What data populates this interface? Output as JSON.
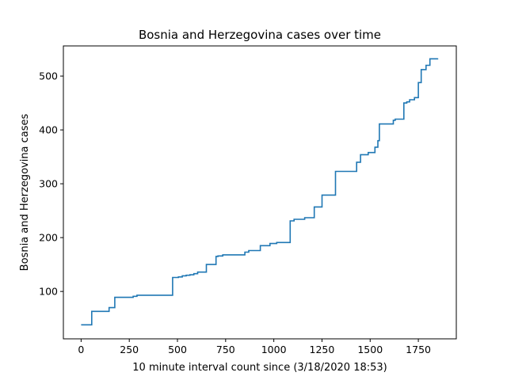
{
  "chart_data": {
    "type": "line",
    "title": "Bosnia and Herzegovina cases over time",
    "xlabel": "10 minute interval count since (3/18/2020 18:53)",
    "ylabel": "Bosnia and Herzegovina cases",
    "xlim": [
      -92,
      1947
    ],
    "ylim": [
      12,
      556
    ],
    "xticks": [
      0,
      250,
      500,
      750,
      1000,
      1250,
      1500,
      1750
    ],
    "yticks": [
      100,
      200,
      300,
      400,
      500
    ],
    "grid": false,
    "legend": "none",
    "step": "post",
    "color": "#1f77b4",
    "series": [
      {
        "x": [
          0,
          55,
          145,
          175,
          270,
          290,
          475,
          505,
          525,
          545,
          565,
          585,
          605,
          650,
          700,
          710,
          735,
          850,
          870,
          930,
          980,
          1015,
          1085,
          1105,
          1160,
          1210,
          1250,
          1320,
          1430,
          1450,
          1490,
          1525,
          1540,
          1548,
          1555,
          1620,
          1630,
          1675,
          1690,
          1705,
          1730,
          1750,
          1765,
          1790,
          1810,
          1850
        ],
        "y": [
          38,
          63,
          70,
          89,
          91,
          93,
          126,
          127,
          129,
          130,
          131,
          133,
          136,
          150,
          165,
          166,
          168,
          173,
          176,
          185,
          189,
          191,
          231,
          234,
          237,
          257,
          279,
          323,
          340,
          354,
          358,
          368,
          380,
          411,
          411,
          418,
          420,
          450,
          452,
          456,
          460,
          488,
          512,
          520,
          532,
          533
        ]
      }
    ]
  }
}
